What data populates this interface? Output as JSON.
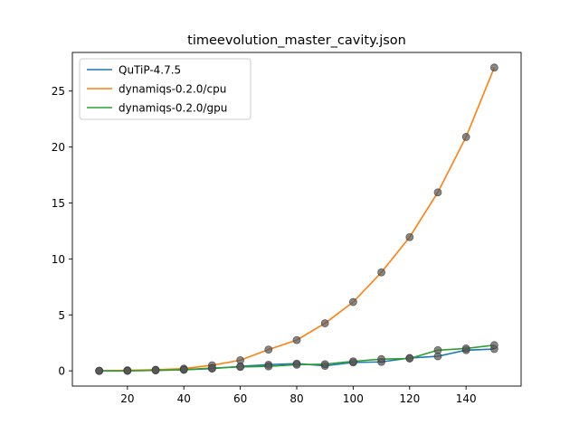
{
  "chart_data": {
    "type": "line",
    "title": "timeevolution_master_cavity.json",
    "xlabel": "",
    "ylabel": "",
    "xlim": [
      0.5,
      159.5
    ],
    "ylim": [
      -1.36,
      28.45
    ],
    "xticks": [
      20,
      40,
      60,
      80,
      100,
      120,
      140
    ],
    "yticks": [
      0,
      5,
      10,
      15,
      20,
      25
    ],
    "grid": false,
    "legend_position": "top-left",
    "x": [
      10,
      20,
      30,
      40,
      50,
      60,
      70,
      80,
      90,
      100,
      110,
      120,
      130,
      140,
      150
    ],
    "series": [
      {
        "name": "QuTiP-4.7.5",
        "color": "#1f77b4",
        "values": [
          0.0,
          0.02,
          0.05,
          0.1,
          0.2,
          0.4,
          0.55,
          0.65,
          0.45,
          0.75,
          0.8,
          1.15,
          1.3,
          1.85,
          1.95
        ]
      },
      {
        "name": "dynamiqs-0.2.0/cpu",
        "color": "#ff7f0e",
        "values": [
          0.0,
          0.05,
          0.1,
          0.2,
          0.5,
          0.95,
          1.9,
          2.75,
          4.25,
          6.15,
          8.8,
          11.95,
          15.95,
          20.9,
          27.1
        ]
      },
      {
        "name": "dynamiqs-0.2.0/gpu",
        "color": "#2ca02c",
        "values": [
          0.0,
          0.0,
          0.05,
          0.1,
          0.25,
          0.35,
          0.4,
          0.55,
          0.6,
          0.85,
          1.05,
          1.1,
          1.85,
          2.0,
          2.3
        ]
      }
    ],
    "marker_color": "#555555"
  }
}
